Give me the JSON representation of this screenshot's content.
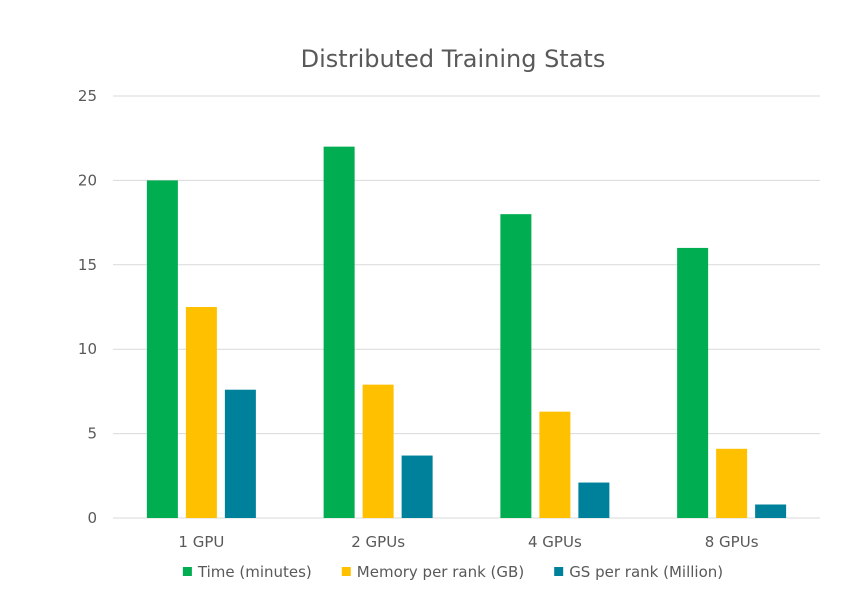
{
  "chart_data": {
    "type": "bar",
    "title": "Distributed Training Stats",
    "xlabel": "",
    "ylabel": "",
    "categories": [
      "1 GPU",
      "2 GPUs",
      "4 GPUs",
      "8 GPUs"
    ],
    "series": [
      {
        "name": "Time (minutes)",
        "color": "#00AD50",
        "values": [
          20,
          22,
          18,
          16
        ]
      },
      {
        "name": "Memory per rank (GB)",
        "color": "#FFC000",
        "values": [
          12.5,
          7.9,
          6.3,
          4.1
        ]
      },
      {
        "name": "GS per rank (Million)",
        "color": "#00819B",
        "values": [
          7.6,
          3.7,
          2.1,
          0.8
        ]
      }
    ],
    "ylim": [
      0,
      25
    ],
    "yticks": [
      0,
      5,
      10,
      15,
      20,
      25
    ],
    "ytick_labels": [
      "0",
      "5",
      "10",
      "15",
      "20",
      "25"
    ],
    "grid": true,
    "gridline_color": "#D9D9D9",
    "legend_position": "bottom"
  }
}
